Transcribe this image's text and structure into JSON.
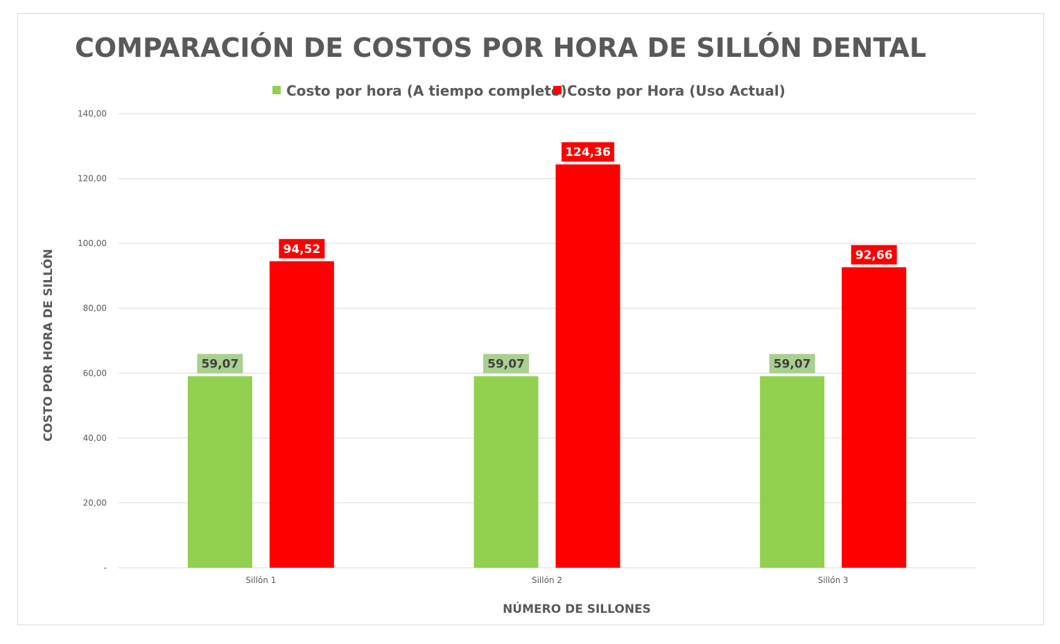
{
  "chart_data": {
    "type": "bar",
    "title": "COMPARACIÓN DE COSTOS POR HORA DE SILLÓN DENTAL",
    "xlabel": "NÚMERO DE SILLONES",
    "ylabel": "COSTO POR HORA DE SILLÓN",
    "categories": [
      "Sillón 1",
      "Sillón 2",
      "Sillón 3"
    ],
    "series": [
      {
        "name": "Costo por hora (A tiempo completo)",
        "values": [
          59.07,
          59.07,
          59.07
        ],
        "labels": [
          "59,07",
          "59,07",
          "59,07"
        ],
        "color": "#92d050",
        "label_bg": "#a9d08e",
        "label_color": "#404040"
      },
      {
        "name": "Costo por Hora (Uso Actual)",
        "values": [
          94.52,
          124.36,
          92.66
        ],
        "labels": [
          "94,52",
          "124,36",
          "92,66"
        ],
        "color": "#ff0000",
        "label_bg": "#ff0000",
        "label_color": "#ffffff"
      }
    ],
    "ylim": [
      0,
      140
    ],
    "yticks": [
      0,
      20,
      40,
      60,
      80,
      100,
      120,
      140
    ],
    "ytick_labels": [
      "-",
      "20,00",
      "40,00",
      "60,00",
      "80,00",
      "100,00",
      "120,00",
      "140,00"
    ],
    "grid": true,
    "legend_position": "top"
  }
}
